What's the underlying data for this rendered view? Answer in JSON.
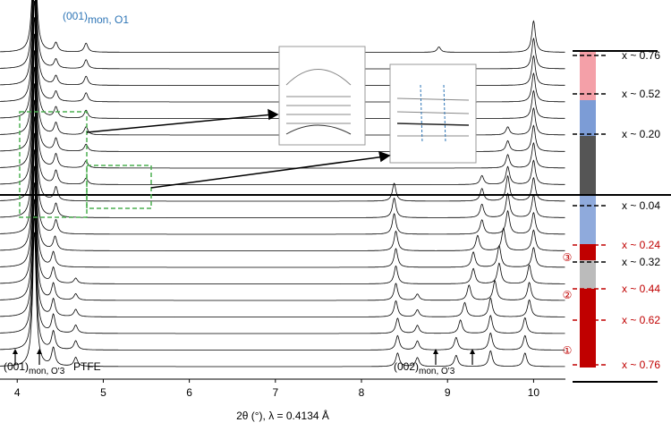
{
  "chart_data": {
    "type": "stacked-patterns",
    "x_label": "2θ (°),  λ = 0.4134 Å",
    "xlim": [
      3.8,
      10.37
    ],
    "xticks": [
      4,
      5,
      6,
      7,
      8,
      9,
      10
    ],
    "annotations": [
      {
        "text": "(001)",
        "sub": "mon, O1",
        "color": "#2e75b6"
      },
      {
        "text": "(001)",
        "sub": "mon, O'3",
        "color": "#000000"
      },
      {
        "text": "PTFE",
        "color": "#000000"
      },
      {
        "text": "(002)",
        "sub": "mon, O'3",
        "color": "#000000"
      }
    ],
    "composition_labels": [
      {
        "text": "x ~ 0.76",
        "color": "#000000"
      },
      {
        "text": "x ~ 0.52",
        "color": "#000000"
      },
      {
        "text": "x ~ 0.20",
        "color": "#000000"
      },
      {
        "text": "x ~ 0.04",
        "color": "#000000"
      },
      {
        "text": "x ~ 0.24",
        "color": "#c00000"
      },
      {
        "text": "x ~ 0.32",
        "color": "#000000"
      },
      {
        "text": "x ~ 0.44",
        "color": "#c00000"
      },
      {
        "text": "x ~ 0.62",
        "color": "#c00000"
      },
      {
        "text": "x ~ 0.76",
        "color": "#c00000"
      }
    ],
    "region_labels": [
      "③",
      "②",
      "①"
    ],
    "series": [
      {
        "color": "#000000",
        "peaks": [
          4.2,
          4.42,
          4.68,
          8.42,
          8.65,
          9.1,
          9.5,
          9.9
        ],
        "heights": [
          300,
          40,
          20,
          30,
          20,
          25,
          35,
          30
        ]
      },
      {
        "color": "#000000",
        "peaks": [
          4.2,
          4.42,
          4.68,
          8.42,
          8.65,
          9.1,
          9.5,
          9.9
        ],
        "heights": [
          300,
          40,
          20,
          32,
          20,
          28,
          38,
          32
        ]
      },
      {
        "color": "#000000",
        "peaks": [
          4.2,
          4.42,
          4.68,
          8.42,
          8.65,
          9.15,
          9.5,
          9.9
        ],
        "heights": [
          300,
          40,
          18,
          34,
          18,
          30,
          40,
          35
        ]
      },
      {
        "color": "#000000",
        "peaks": [
          4.2,
          4.42,
          4.68,
          8.4,
          8.65,
          9.2,
          9.5,
          9.95
        ],
        "heights": [
          300,
          38,
          16,
          36,
          16,
          32,
          42,
          38
        ]
      },
      {
        "color": "#000000",
        "peaks": [
          4.2,
          4.42,
          4.68,
          8.4,
          8.65,
          9.25,
          9.55,
          9.95
        ],
        "heights": [
          300,
          36,
          14,
          38,
          14,
          34,
          44,
          40
        ]
      },
      {
        "color": "#000000",
        "peaks": [
          4.2,
          4.42,
          4.68,
          8.4,
          9.3,
          9.6,
          9.95
        ],
        "heights": [
          300,
          34,
          12,
          40,
          34,
          46,
          42
        ]
      },
      {
        "color": "#000000",
        "peaks": [
          4.2,
          4.42,
          8.4,
          9.3,
          9.6,
          10.0
        ],
        "heights": [
          300,
          32,
          42,
          34,
          48,
          44
        ]
      },
      {
        "color": "#000000",
        "peaks": [
          4.2,
          4.44,
          8.4,
          9.35,
          9.65,
          10.0
        ],
        "heights": [
          300,
          30,
          44,
          34,
          50,
          46
        ]
      },
      {
        "color": "#000000",
        "peaks": [
          4.2,
          4.45,
          8.38,
          9.4,
          9.7,
          10.0
        ],
        "heights": [
          300,
          30,
          46,
          32,
          52,
          48
        ]
      },
      {
        "color": "#000000",
        "peaks": [
          4.2,
          4.45,
          8.38,
          9.4,
          9.7,
          10.0
        ],
        "heights": [
          300,
          30,
          44,
          30,
          54,
          50
        ]
      },
      {
        "color": "#000000",
        "peaks": [
          4.2,
          4.45,
          8.38,
          9.4,
          9.7,
          10.0
        ],
        "heights": [
          300,
          30,
          40,
          28,
          56,
          52
        ]
      },
      {
        "color": "#000000",
        "peaks": [
          4.2,
          4.45,
          4.8,
          9.4,
          9.7,
          10.0
        ],
        "heights": [
          300,
          30,
          14,
          20,
          40,
          54
        ]
      },
      {
        "color": "#000000",
        "peaks": [
          4.2,
          4.45,
          4.8,
          9.7,
          10.0
        ],
        "heights": [
          300,
          30,
          16,
          30,
          56
        ]
      },
      {
        "color": "#000000",
        "peaks": [
          4.2,
          4.45,
          4.8,
          9.7,
          10.0
        ],
        "heights": [
          300,
          28,
          16,
          24,
          58
        ]
      },
      {
        "color": "#000000",
        "peaks": [
          4.2,
          4.45,
          4.8,
          9.7,
          10.0
        ],
        "heights": [
          300,
          26,
          18,
          18,
          60
        ]
      },
      {
        "color": "#000000",
        "peaks": [
          4.2,
          4.45,
          4.8,
          10.0
        ],
        "heights": [
          300,
          24,
          18,
          62
        ]
      },
      {
        "color": "#000000",
        "peaks": [
          4.2,
          4.45,
          4.8,
          10.0
        ],
        "heights": [
          300,
          22,
          20,
          64
        ]
      },
      {
        "color": "#000000",
        "peaks": [
          4.2,
          4.45,
          4.8,
          8.9,
          10.0
        ],
        "heights": [
          300,
          20,
          20,
          8,
          66
        ]
      },
      {
        "color": "#000000",
        "peaks": [
          4.2,
          4.45,
          4.8,
          8.9,
          10.0
        ],
        "heights": [
          300,
          20,
          20,
          10,
          68
        ]
      },
      {
        "color": "#000000",
        "peaks": [
          4.2,
          4.45,
          4.8,
          8.9,
          10.0
        ],
        "heights": [
          300,
          20,
          20,
          12,
          70
        ]
      }
    ]
  }
}
